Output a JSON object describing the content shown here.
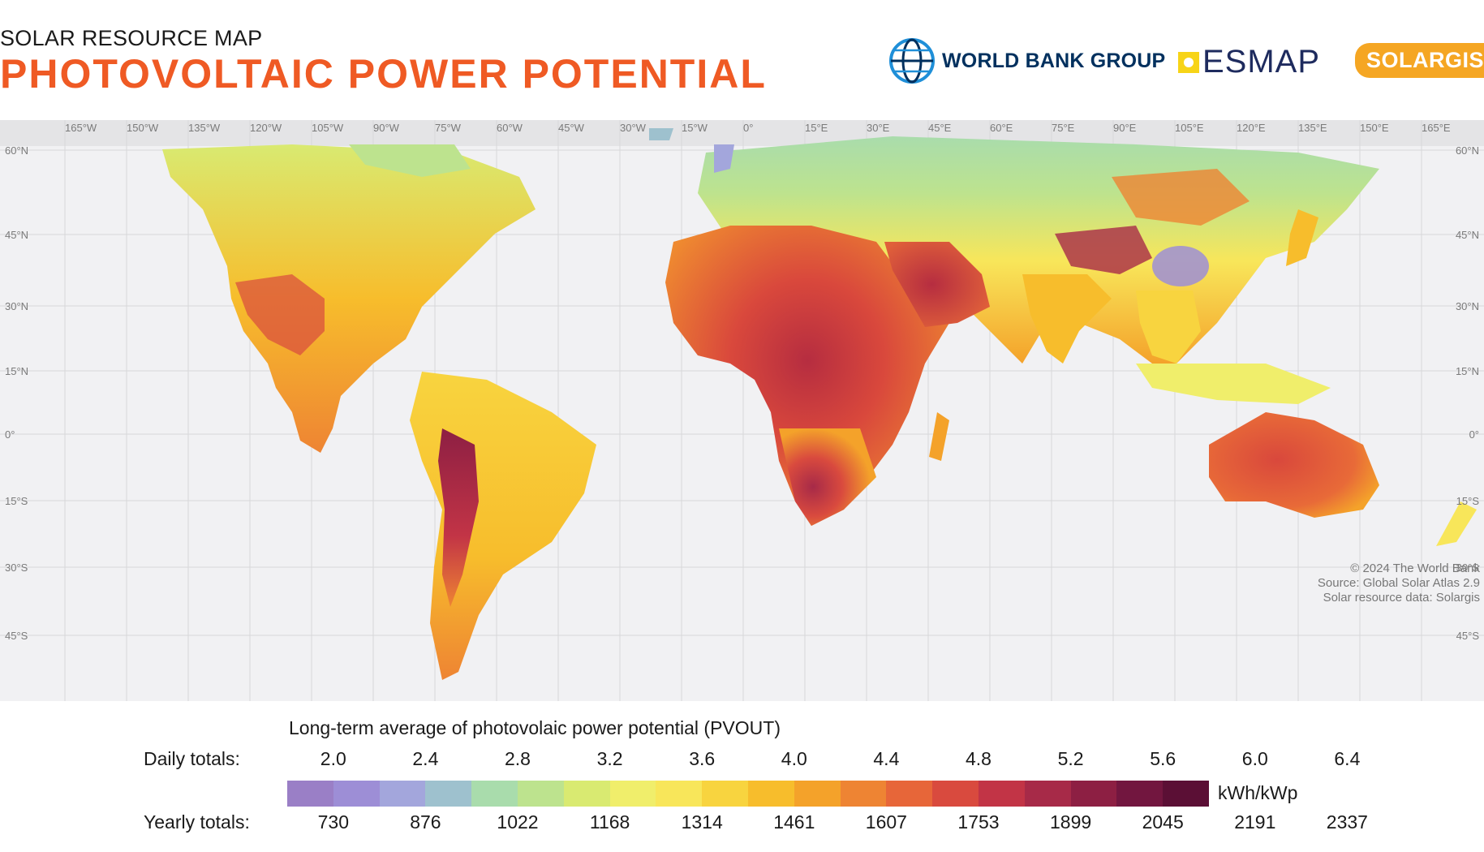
{
  "header": {
    "subtitle": "SOLAR RESOURCE MAP",
    "title": "PHOTOVOLTAIC  POWER  POTENTIAL"
  },
  "logos": {
    "world_bank": "WORLD BANK GROUP",
    "esmap": "ESMAP",
    "solargis": "SOLARGIS"
  },
  "map": {
    "lon_labels": [
      "165°W",
      "150°W",
      "135°W",
      "120°W",
      "105°W",
      "90°W",
      "75°W",
      "60°W",
      "45°W",
      "30°W",
      "15°W",
      "0°",
      "15°E",
      "30°E",
      "45°E",
      "60°E",
      "75°E",
      "90°E",
      "105°E",
      "120°E",
      "135°E",
      "150°E",
      "165°E"
    ],
    "lat_labels_left": [
      "60°N",
      "45°N",
      "30°N",
      "15°N",
      "0°",
      "15°S",
      "30°S",
      "45°S"
    ],
    "lat_labels_right": [
      "60°N",
      "45°N",
      "30°N",
      "15°N",
      "0°",
      "15°S",
      "30°S",
      "45°S"
    ],
    "attribution": [
      "© 2024 The World Bank",
      "Source: Global Solar Atlas 2.9",
      "Solar resource data: Solargis"
    ]
  },
  "legend": {
    "title": "Long-term average of photovolaic power potential (PVOUT)",
    "daily_label": "Daily totals:",
    "yearly_label": "Yearly totals:",
    "unit": "kWh/kWp",
    "daily_ticks": [
      "2.0",
      "2.4",
      "2.8",
      "3.2",
      "3.6",
      "4.0",
      "4.4",
      "4.8",
      "5.2",
      "5.6",
      "6.0",
      "6.4"
    ],
    "yearly_ticks": [
      "730",
      "876",
      "1022",
      "1168",
      "1314",
      "1461",
      "1607",
      "1753",
      "1899",
      "2045",
      "2191",
      "2337"
    ],
    "colors": [
      "#9a7fc6",
      "#9d8ed6",
      "#a3a6dc",
      "#9ec1ce",
      "#a9dcac",
      "#bde38e",
      "#d9ea71",
      "#f0ee6b",
      "#f8e65a",
      "#f8d43f",
      "#f7bd2c",
      "#f4a22a",
      "#ee8433",
      "#e76639",
      "#d94a3e",
      "#c23446",
      "#a72a48",
      "#8d1f43",
      "#72163f",
      "#5b0f35"
    ]
  }
}
